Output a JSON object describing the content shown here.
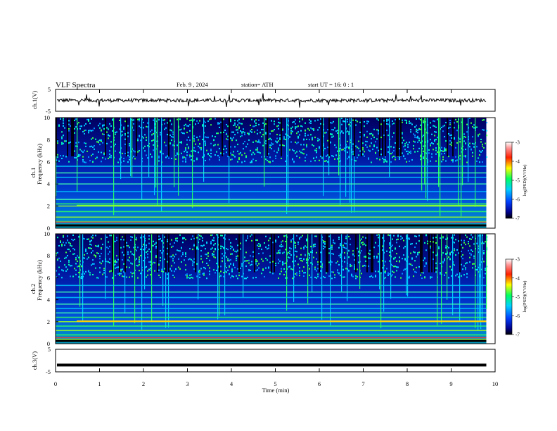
{
  "header": {
    "title": "VLF  Spectra",
    "date": "Feb. 9  , 2024",
    "station": "station= ATH",
    "start": "start  UT  =   16: 0  : 1"
  },
  "chart_data": [
    {
      "type": "line",
      "title": "",
      "ylabel": "ch.1(V)",
      "ylim": [
        -5,
        5
      ],
      "yticks": [
        "5",
        "-5"
      ],
      "xlim": [
        0,
        10
      ],
      "series": [
        {
          "baseline": 0,
          "description_level": 0
        }
      ]
    },
    {
      "type": "heatmap",
      "ylabel_line1": "ch.1",
      "ylabel_line2": "Frequency (kHz)",
      "ylim": [
        0,
        10
      ],
      "yticks": [
        "10",
        "8",
        "6",
        "4",
        "2",
        "0"
      ],
      "xlim": [
        0,
        10
      ],
      "data_end_min": 9.8,
      "colorbar": {
        "label": "log(PSD)(V²/Hz)",
        "range": [
          -7,
          -3
        ],
        "ticks": [
          "-3",
          "-4",
          "-5",
          "-6",
          "-7"
        ]
      },
      "bands_khz": [
        0.3,
        0.6,
        1.0,
        1.5,
        2.0,
        2.2,
        2.6,
        3.3,
        4.0,
        4.6,
        5.0,
        5.6
      ]
    },
    {
      "type": "heatmap",
      "ylabel_line1": "ch.2",
      "ylabel_line2": "Frequency (kHz)",
      "ylim": [
        0,
        10
      ],
      "yticks": [
        "10",
        "8",
        "6",
        "4",
        "2",
        "0"
      ],
      "xlim": [
        0,
        10
      ],
      "data_end_min": 9.8,
      "colorbar": {
        "label": "log(PSD)(V²/Hz)",
        "range": [
          -7,
          -3
        ],
        "ticks": [
          "-3",
          "-4",
          "-5",
          "-6",
          "-7"
        ]
      },
      "bands_khz": [
        0.4,
        0.8,
        1.2,
        1.6,
        2.0,
        2.4,
        2.8,
        3.2,
        3.6,
        4.2,
        4.7,
        5.3
      ]
    },
    {
      "type": "line",
      "ylabel": "ch.3(V)",
      "ylim": [
        -5,
        5
      ],
      "yticks": [
        "5",
        "-5"
      ],
      "xlim": [
        0,
        10
      ],
      "xticks": [
        "0",
        "1",
        "2",
        "3",
        "4",
        "5",
        "6",
        "7",
        "8",
        "9",
        "10"
      ],
      "xlabel": "Time  (min)",
      "series": [
        {
          "constant_value": -2
        }
      ]
    }
  ]
}
